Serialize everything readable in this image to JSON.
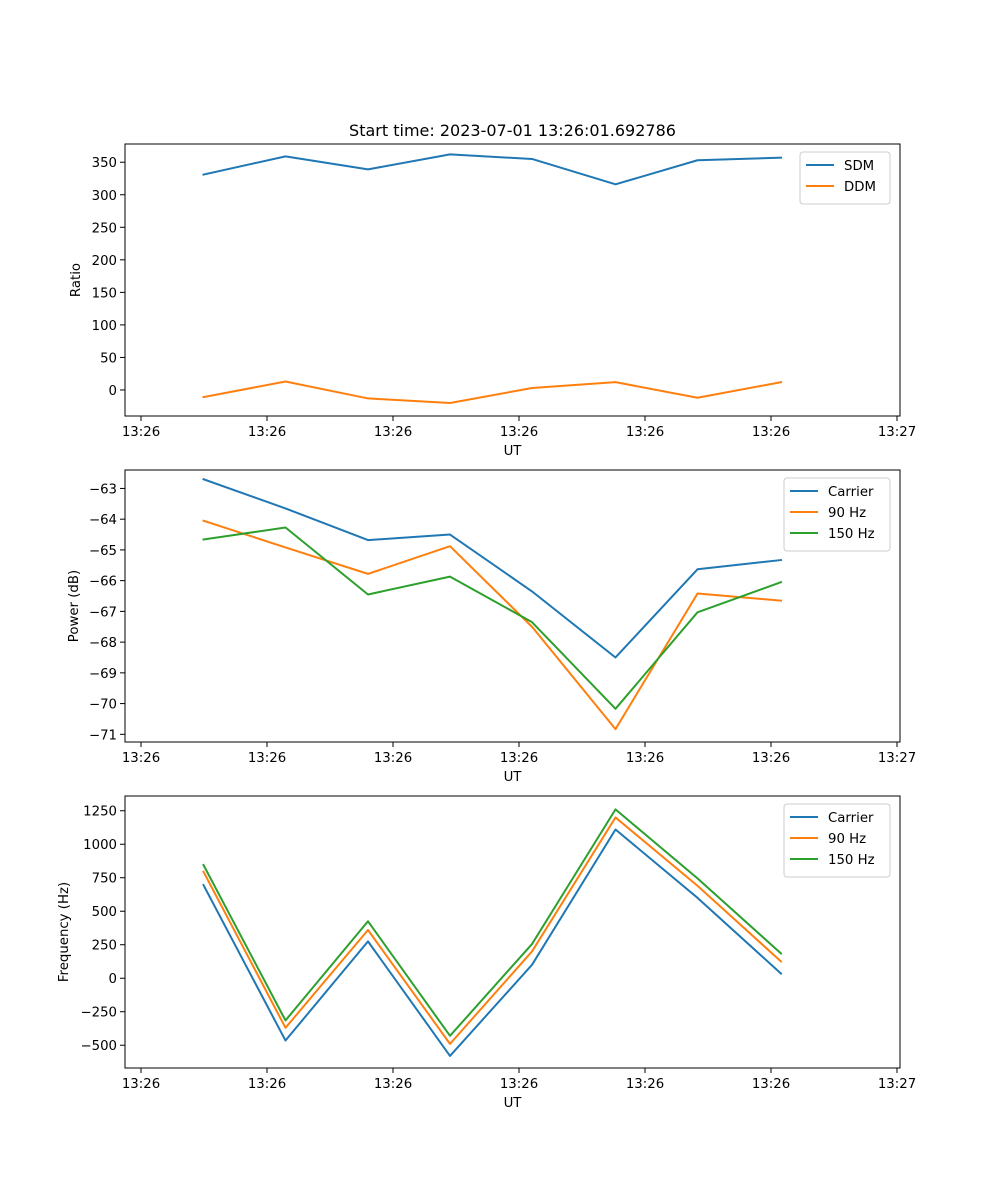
{
  "figure_title": "Start time: 2023-07-01 13:26:01.692786",
  "chart_data": [
    {
      "type": "line",
      "title": "Start time: 2023-07-01 13:26:01.692786",
      "xlabel": "UT",
      "ylabel": "Ratio",
      "x_tick_labels": [
        "13:26",
        "13:26",
        "13:26",
        "13:26",
        "13:26",
        "13:26",
        "13:27"
      ],
      "y_ticks": [
        0,
        50,
        100,
        150,
        200,
        250,
        300,
        350
      ],
      "ylim": [
        -40,
        378
      ],
      "legend_position": "top-right",
      "series": [
        {
          "name": "SDM",
          "color": "#1f77b4",
          "values": [
            331,
            359,
            339,
            362,
            355,
            316,
            353,
            357
          ]
        },
        {
          "name": "DDM",
          "color": "#ff7f0e",
          "values": [
            -11,
            13,
            -13,
            -20,
            3,
            12,
            -12,
            12
          ]
        }
      ]
    },
    {
      "type": "line",
      "title": "",
      "xlabel": "UT",
      "ylabel": "Power (dB)",
      "x_tick_labels": [
        "13:26",
        "13:26",
        "13:26",
        "13:26",
        "13:26",
        "13:26",
        "13:27"
      ],
      "y_ticks": [
        -71,
        -70,
        -69,
        -68,
        -67,
        -66,
        -65,
        -64,
        -63
      ],
      "ylim": [
        -71.25,
        -62.4
      ],
      "legend_position": "top-right",
      "series": [
        {
          "name": "Carrier",
          "color": "#1f77b4",
          "values": [
            -62.7,
            -63.65,
            -64.68,
            -64.5,
            -66.35,
            -68.5,
            -65.63,
            -65.33
          ]
        },
        {
          "name": "90 Hz",
          "color": "#ff7f0e",
          "values": [
            -64.05,
            -64.92,
            -65.78,
            -64.88,
            -67.5,
            -70.83,
            -66.42,
            -66.65
          ]
        },
        {
          "name": "150 Hz",
          "color": "#2ca02c",
          "values": [
            -64.66,
            -64.27,
            -66.45,
            -65.87,
            -67.35,
            -70.17,
            -67.03,
            -66.05
          ]
        }
      ]
    },
    {
      "type": "line",
      "title": "",
      "xlabel": "UT",
      "ylabel": "Frequency (Hz)",
      "x_tick_labels": [
        "13:26",
        "13:26",
        "13:26",
        "13:26",
        "13:26",
        "13:26",
        "13:27"
      ],
      "y_ticks": [
        -500,
        -250,
        0,
        250,
        500,
        750,
        1000,
        1250
      ],
      "ylim": [
        -670,
        1360
      ],
      "legend_position": "top-right",
      "series": [
        {
          "name": "Carrier",
          "color": "#1f77b4",
          "values": [
            695,
            -465,
            275,
            -580,
            100,
            1110,
            600,
            35
          ]
        },
        {
          "name": "90 Hz",
          "color": "#ff7f0e",
          "values": [
            795,
            -370,
            360,
            -490,
            200,
            1200,
            690,
            125
          ]
        },
        {
          "name": "150 Hz",
          "color": "#2ca02c",
          "values": [
            845,
            -315,
            425,
            -430,
            255,
            1260,
            745,
            185
          ]
        }
      ]
    }
  ]
}
